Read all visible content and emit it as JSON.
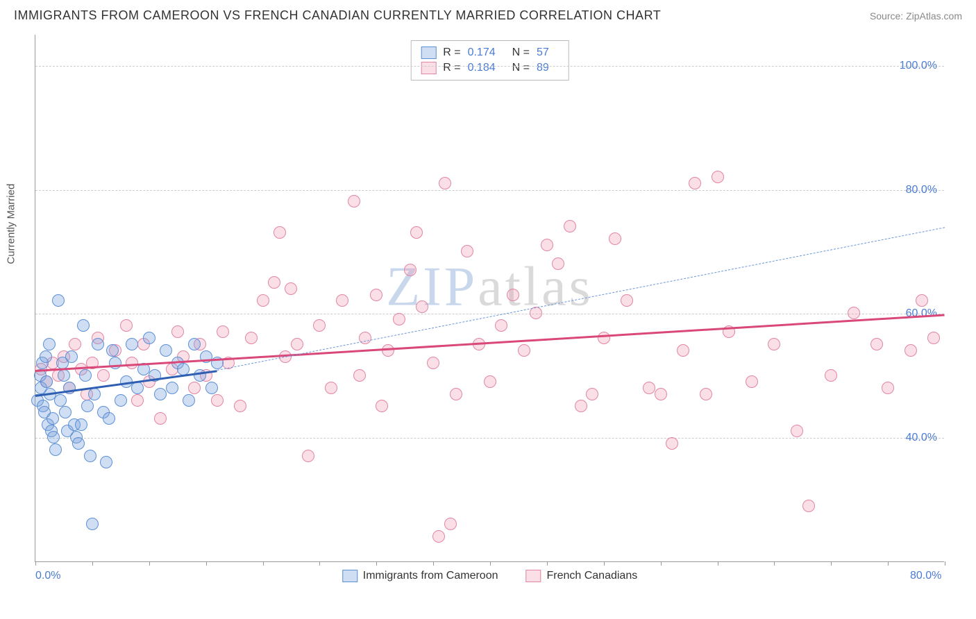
{
  "title": "IMMIGRANTS FROM CAMEROON VS FRENCH CANADIAN CURRENTLY MARRIED CORRELATION CHART",
  "source": "Source: ZipAtlas.com",
  "watermark_z": "ZIP",
  "watermark_rest": "atlas",
  "chart": {
    "type": "scatter",
    "y_axis_label": "Currently Married",
    "xlim": [
      0,
      80
    ],
    "ylim": [
      20,
      105
    ],
    "x_ticks_minor_step": 5,
    "x_tick_labels": [
      {
        "v": 0,
        "label": "0.0%"
      },
      {
        "v": 80,
        "label": "80.0%"
      }
    ],
    "y_grid": [
      40,
      60,
      80,
      100
    ],
    "y_tick_labels": [
      {
        "v": 40,
        "label": "40.0%"
      },
      {
        "v": 60,
        "label": "60.0%"
      },
      {
        "v": 80,
        "label": "80.0%"
      },
      {
        "v": 100,
        "label": "100.0%"
      }
    ],
    "background_color": "#ffffff",
    "grid_color": "#cccccc",
    "axis_color": "#999999",
    "label_color": "#4a7bd4",
    "marker_radius": 9,
    "marker_border_width": 1.5,
    "series": [
      {
        "id": "cameroon",
        "label": "Immigrants from Cameroon",
        "fill": "rgba(120,160,220,0.35)",
        "stroke": "#5b8fd6",
        "trend_color": "#2e5fb3",
        "trend_dashed_color": "#6a96d8",
        "R": "0.174",
        "N": "57",
        "trend": {
          "x1": 0,
          "y1": 47,
          "x2": 16,
          "y2": 51
        },
        "trend_ext": {
          "x1": 16,
          "y1": 51,
          "x2": 80,
          "y2": 74
        },
        "points": [
          [
            0.2,
            46
          ],
          [
            0.4,
            50
          ],
          [
            0.5,
            48
          ],
          [
            0.6,
            52
          ],
          [
            0.7,
            45
          ],
          [
            0.8,
            44
          ],
          [
            0.9,
            53
          ],
          [
            1.0,
            49
          ],
          [
            1.1,
            42
          ],
          [
            1.2,
            55
          ],
          [
            1.3,
            47
          ],
          [
            1.4,
            41
          ],
          [
            1.5,
            43
          ],
          [
            1.6,
            40
          ],
          [
            1.8,
            38
          ],
          [
            2.0,
            62
          ],
          [
            2.2,
            46
          ],
          [
            2.4,
            52
          ],
          [
            2.5,
            50
          ],
          [
            2.6,
            44
          ],
          [
            2.8,
            41
          ],
          [
            3.0,
            48
          ],
          [
            3.2,
            53
          ],
          [
            3.4,
            42
          ],
          [
            3.6,
            40
          ],
          [
            3.8,
            39
          ],
          [
            4.0,
            42
          ],
          [
            4.2,
            58
          ],
          [
            4.4,
            50
          ],
          [
            4.6,
            45
          ],
          [
            4.8,
            37
          ],
          [
            5.0,
            26
          ],
          [
            5.2,
            47
          ],
          [
            5.5,
            55
          ],
          [
            6.0,
            44
          ],
          [
            6.2,
            36
          ],
          [
            6.5,
            43
          ],
          [
            6.8,
            54
          ],
          [
            7.0,
            52
          ],
          [
            7.5,
            46
          ],
          [
            8.0,
            49
          ],
          [
            8.5,
            55
          ],
          [
            9.0,
            48
          ],
          [
            9.5,
            51
          ],
          [
            10.0,
            56
          ],
          [
            10.5,
            50
          ],
          [
            11.0,
            47
          ],
          [
            11.5,
            54
          ],
          [
            12.0,
            48
          ],
          [
            12.5,
            52
          ],
          [
            13.0,
            51
          ],
          [
            13.5,
            46
          ],
          [
            14.0,
            55
          ],
          [
            14.5,
            50
          ],
          [
            15.0,
            53
          ],
          [
            15.5,
            48
          ],
          [
            16.0,
            52
          ]
        ]
      },
      {
        "id": "french_canadian",
        "label": "French Canadians",
        "fill": "rgba(240,150,175,0.30)",
        "stroke": "#e285a5",
        "trend_color": "#d94878",
        "R": "0.184",
        "N": "89",
        "trend": {
          "x1": 0,
          "y1": 51,
          "x2": 80,
          "y2": 60
        },
        "points": [
          [
            0.5,
            51
          ],
          [
            1.0,
            49
          ],
          [
            1.5,
            52
          ],
          [
            2.0,
            50
          ],
          [
            2.5,
            53
          ],
          [
            3.0,
            48
          ],
          [
            3.5,
            55
          ],
          [
            4.0,
            51
          ],
          [
            4.5,
            47
          ],
          [
            5.0,
            52
          ],
          [
            5.5,
            56
          ],
          [
            6.0,
            50
          ],
          [
            7.0,
            54
          ],
          [
            8.0,
            58
          ],
          [
            8.5,
            52
          ],
          [
            9.0,
            46
          ],
          [
            9.5,
            55
          ],
          [
            10.0,
            49
          ],
          [
            11.0,
            43
          ],
          [
            12.0,
            51
          ],
          [
            12.5,
            57
          ],
          [
            13.0,
            53
          ],
          [
            14.0,
            48
          ],
          [
            14.5,
            55
          ],
          [
            15.0,
            50
          ],
          [
            16.0,
            46
          ],
          [
            16.5,
            57
          ],
          [
            17.0,
            52
          ],
          [
            18.0,
            45
          ],
          [
            19.0,
            56
          ],
          [
            20.0,
            62
          ],
          [
            21.0,
            65
          ],
          [
            21.5,
            73
          ],
          [
            22.0,
            53
          ],
          [
            22.5,
            64
          ],
          [
            23.0,
            55
          ],
          [
            24.0,
            37
          ],
          [
            25.0,
            58
          ],
          [
            26.0,
            48
          ],
          [
            27.0,
            62
          ],
          [
            28.0,
            78
          ],
          [
            28.5,
            50
          ],
          [
            29.0,
            56
          ],
          [
            30.0,
            63
          ],
          [
            30.5,
            45
          ],
          [
            31.0,
            54
          ],
          [
            32.0,
            59
          ],
          [
            33.0,
            67
          ],
          [
            33.5,
            73
          ],
          [
            34.0,
            61
          ],
          [
            35.0,
            52
          ],
          [
            35.5,
            24
          ],
          [
            36.0,
            81
          ],
          [
            36.5,
            26
          ],
          [
            37.0,
            47
          ],
          [
            38.0,
            70
          ],
          [
            39.0,
            55
          ],
          [
            40.0,
            49
          ],
          [
            41.0,
            58
          ],
          [
            42.0,
            63
          ],
          [
            43.0,
            54
          ],
          [
            44.0,
            60
          ],
          [
            45.0,
            71
          ],
          [
            46.0,
            68
          ],
          [
            47.0,
            74
          ],
          [
            48.0,
            45
          ],
          [
            49.0,
            47
          ],
          [
            50.0,
            56
          ],
          [
            51.0,
            72
          ],
          [
            52.0,
            62
          ],
          [
            54.0,
            48
          ],
          [
            55.0,
            47
          ],
          [
            56.0,
            39
          ],
          [
            57.0,
            54
          ],
          [
            58.0,
            81
          ],
          [
            59.0,
            47
          ],
          [
            60.0,
            82
          ],
          [
            61.0,
            57
          ],
          [
            63.0,
            49
          ],
          [
            65.0,
            55
          ],
          [
            67.0,
            41
          ],
          [
            68.0,
            29
          ],
          [
            70.0,
            50
          ],
          [
            72.0,
            60
          ],
          [
            74.0,
            55
          ],
          [
            75.0,
            48
          ],
          [
            77.0,
            54
          ],
          [
            78.0,
            62
          ],
          [
            79.0,
            56
          ]
        ]
      }
    ],
    "legend_stats_labels": {
      "R": "R =",
      "N": "N ="
    }
  }
}
